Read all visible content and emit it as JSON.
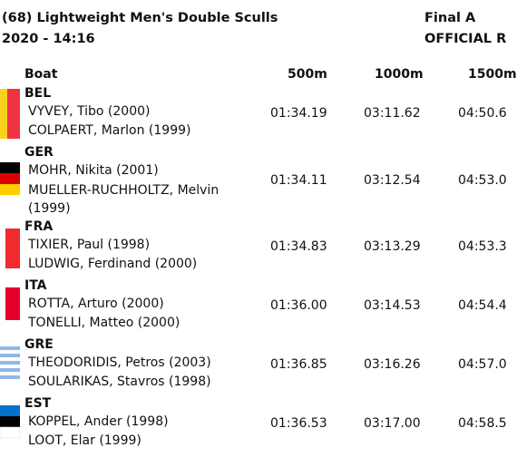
{
  "header": {
    "title": "(68) Lightweight Men's Double Sculls",
    "subtitle": "2020 - 14:16",
    "final": "Final A",
    "official": "OFFICIAL R"
  },
  "columns": {
    "boat": "Boat",
    "m500": "500m",
    "m1000": "1000m",
    "m1500": "1500m"
  },
  "entries": [
    {
      "country": "BEL",
      "rowers": [
        "VYVEY, Tibo (2000)",
        "COLPAERT, Marlon (1999)"
      ],
      "t500": "01:34.19",
      "t1000": "03:11.62",
      "t1500": "04:50.6"
    },
    {
      "country": "GER",
      "rowers": [
        "MOHR, Nikita (2001)",
        "MUELLER-RUCHHOLTZ, Melvin (1999)"
      ],
      "t500": "01:34.11",
      "t1000": "03:12.54",
      "t1500": "04:53.0"
    },
    {
      "country": "FRA",
      "rowers": [
        "TIXIER, Paul (1998)",
        "LUDWIG, Ferdinand (2000)"
      ],
      "t500": "01:34.83",
      "t1000": "03:13.29",
      "t1500": "04:53.3"
    },
    {
      "country": "ITA",
      "rowers": [
        "ROTTA, Arturo (2000)",
        "TONELLI, Matteo (2000)"
      ],
      "t500": "01:36.00",
      "t1000": "03:14.53",
      "t1500": "04:54.4"
    },
    {
      "country": "GRE",
      "rowers": [
        "THEODORIDIS, Petros (2003)",
        "SOULARIKAS, Stavros (1998)"
      ],
      "t500": "01:36.85",
      "t1000": "03:16.26",
      "t1500": "04:57.0"
    },
    {
      "country": "EST",
      "rowers": [
        "KOPPEL, Ander (1998)",
        "LOOT, Elar (1999)"
      ],
      "t500": "01:36.53",
      "t1000": "03:17.00",
      "t1500": "04:58.5"
    }
  ],
  "colors": {
    "bel_yellow": "#FAD21E",
    "bel_red": "#EF3340",
    "ger_black": "#000000",
    "ger_red": "#DD0000",
    "ger_gold": "#FFCE00",
    "fra_red": "#EF2B2D",
    "ita_red": "#E4002B",
    "gre_blue": "#8FB8E6",
    "est_blue": "#0072CE",
    "est_black": "#000000"
  }
}
